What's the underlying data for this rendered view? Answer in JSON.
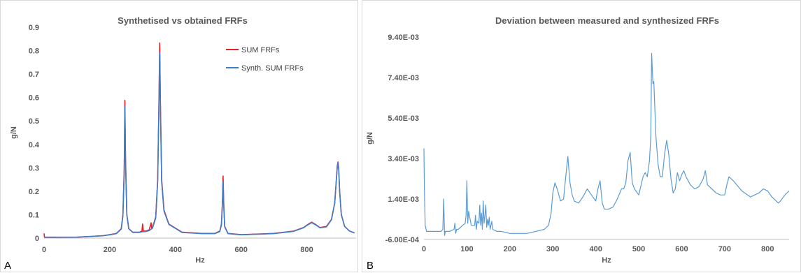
{
  "chart_data": [
    {
      "type": "line",
      "panel_label": "A",
      "title": "Synthetised vs obtained FRFs",
      "xlabel": "Hz",
      "ylabel": "g/N",
      "xlim": [
        0,
        950
      ],
      "ylim": [
        0,
        0.9
      ],
      "xticks": [
        0,
        200,
        400,
        600,
        800
      ],
      "xtick_labels": [
        "0",
        "200",
        "400",
        "600",
        "800"
      ],
      "yticks": [
        0,
        0.1,
        0.2,
        0.3,
        0.4,
        0.5,
        0.6,
        0.7,
        0.8,
        0.9
      ],
      "ytick_labels": [
        "0",
        "0.1",
        "0.2",
        "0.3",
        "0.4",
        "0.5",
        "0.6",
        "0.7",
        "0.8",
        "0.9"
      ],
      "grid": false,
      "legend": "top-right",
      "series": [
        {
          "name": "SUM FRFs",
          "color": "#e8202a",
          "x": [
            0,
            1,
            2,
            5,
            100,
            180,
            200,
            220,
            235,
            240,
            244,
            246,
            248,
            252,
            258,
            270,
            290,
            298,
            300,
            302,
            310,
            320,
            326,
            328,
            330,
            340,
            346,
            350,
            352,
            354,
            358,
            365,
            380,
            420,
            480,
            520,
            535,
            540,
            543,
            545,
            547,
            550,
            560,
            600,
            700,
            760,
            790,
            805,
            815,
            825,
            840,
            860,
            875,
            885,
            890,
            893,
            895,
            897,
            900,
            905,
            915,
            930,
            945
          ],
          "y": [
            0.02,
            0.005,
            0.003,
            0.003,
            0.004,
            0.01,
            0.015,
            0.02,
            0.04,
            0.1,
            0.3,
            0.588,
            0.35,
            0.1,
            0.04,
            0.025,
            0.025,
            0.03,
            0.06,
            0.03,
            0.03,
            0.035,
            0.065,
            0.04,
            0.045,
            0.09,
            0.25,
            0.6,
            0.833,
            0.6,
            0.25,
            0.12,
            0.06,
            0.025,
            0.02,
            0.02,
            0.03,
            0.06,
            0.15,
            0.265,
            0.15,
            0.05,
            0.02,
            0.015,
            0.02,
            0.03,
            0.045,
            0.06,
            0.068,
            0.06,
            0.045,
            0.05,
            0.08,
            0.15,
            0.25,
            0.31,
            0.325,
            0.3,
            0.2,
            0.1,
            0.05,
            0.03,
            0.022
          ]
        },
        {
          "name": "Synth. SUM FRFs",
          "color": "#3d7cc9",
          "x": [
            0,
            100,
            180,
            200,
            220,
            235,
            240,
            244,
            246,
            248,
            252,
            258,
            270,
            290,
            300,
            310,
            320,
            330,
            340,
            346,
            350,
            352,
            354,
            358,
            365,
            380,
            420,
            480,
            520,
            535,
            540,
            543,
            545,
            547,
            550,
            560,
            600,
            700,
            760,
            790,
            805,
            815,
            825,
            840,
            860,
            875,
            885,
            890,
            893,
            895,
            897,
            900,
            905,
            915,
            930,
            945
          ],
          "y": [
            0.004,
            0.004,
            0.01,
            0.014,
            0.019,
            0.038,
            0.095,
            0.28,
            0.56,
            0.33,
            0.1,
            0.04,
            0.024,
            0.024,
            0.027,
            0.028,
            0.032,
            0.042,
            0.085,
            0.24,
            0.58,
            0.79,
            0.58,
            0.24,
            0.115,
            0.058,
            0.024,
            0.019,
            0.019,
            0.028,
            0.055,
            0.14,
            0.24,
            0.14,
            0.048,
            0.019,
            0.014,
            0.019,
            0.029,
            0.044,
            0.058,
            0.066,
            0.058,
            0.044,
            0.048,
            0.078,
            0.15,
            0.25,
            0.305,
            0.322,
            0.298,
            0.2,
            0.1,
            0.05,
            0.03,
            0.022
          ]
        }
      ]
    },
    {
      "type": "line",
      "panel_label": "B",
      "title": "Deviation between measured and synthesized FRFs",
      "xlabel": "Hz",
      "ylabel": "g/N",
      "xlim": [
        0,
        850
      ],
      "ylim": [
        -0.0006,
        0.0094
      ],
      "xticks": [
        0,
        100,
        200,
        300,
        400,
        500,
        600,
        700,
        800
      ],
      "xtick_labels": [
        "0",
        "100",
        "200",
        "300",
        "400",
        "500",
        "600",
        "700",
        "800"
      ],
      "yticks": [
        -0.0006,
        0.0014,
        0.0034,
        0.0054,
        0.0074,
        0.0094
      ],
      "ytick_labels": [
        "-6.00E-04",
        "1.40E-03",
        "3.40E-03",
        "5.40E-03",
        "7.40E-03",
        "9.40E-03"
      ],
      "grid": false,
      "series": [
        {
          "color": "#5b9bd5",
          "x": [
            0,
            1,
            3,
            6,
            10,
            20,
            30,
            40,
            44,
            46,
            48,
            50,
            60,
            70,
            72,
            74,
            76,
            80,
            90,
            96,
            98,
            100,
            102,
            104,
            110,
            118,
            120,
            122,
            124,
            128,
            130,
            132,
            134,
            136,
            138,
            140,
            142,
            144,
            146,
            148,
            150,
            152,
            154,
            158,
            160,
            170,
            180,
            200,
            220,
            240,
            260,
            280,
            290,
            296,
            300,
            305,
            310,
            318,
            325,
            330,
            335,
            340,
            345,
            350,
            360,
            370,
            380,
            390,
            400,
            405,
            410,
            415,
            420,
            430,
            440,
            450,
            460,
            465,
            470,
            475,
            480,
            485,
            490,
            500,
            510,
            515,
            520,
            525,
            528,
            530,
            533,
            535,
            540,
            545,
            550,
            555,
            560,
            565,
            570,
            575,
            580,
            585,
            590,
            595,
            600,
            605,
            610,
            620,
            630,
            640,
            645,
            650,
            655,
            660,
            670,
            680,
            690,
            700,
            705,
            710,
            720,
            740,
            760,
            780,
            790,
            800,
            810,
            820,
            825,
            830,
            840,
            850
          ],
          "y": [
            0.0039,
            0.002,
            0.0001,
            -0.0002,
            -0.0002,
            -0.0002,
            -0.0002,
            -0.0002,
            -0.0001,
            0.0014,
            -0.0004,
            -0.0002,
            -0.0002,
            -0.0001,
            0.0002,
            -0.0003,
            -0.0001,
            -0.0001,
            0.0001,
            0.0002,
            0.0006,
            0.0023,
            0.0002,
            0.0008,
            0.0001,
            0.0001,
            0.0006,
            -0.0001,
            0.0003,
            0.0002,
            0.0011,
            0.0001,
            0.0007,
            -0.0001,
            0.0013,
            0.0002,
            0.0006,
            0.0011,
            0.0,
            0.0004,
            0.0001,
            0.0005,
            -0.0001,
            0.0003,
            -0.0001,
            -0.0002,
            -0.0002,
            -0.0003,
            -0.0003,
            -0.0003,
            -0.0002,
            -0.0001,
            0.0001,
            0.0007,
            0.0017,
            0.0022,
            0.0019,
            0.0013,
            0.0014,
            0.0025,
            0.0035,
            0.0022,
            0.0016,
            0.0013,
            0.0012,
            0.0015,
            0.0019,
            0.0016,
            0.0013,
            0.0019,
            0.0023,
            0.0012,
            0.0009,
            0.0009,
            0.001,
            0.0014,
            0.0019,
            0.0019,
            0.0022,
            0.0033,
            0.0037,
            0.0022,
            0.0019,
            0.0016,
            0.0025,
            0.0027,
            0.0025,
            0.0033,
            0.0045,
            0.0086,
            0.0071,
            0.0072,
            0.0045,
            0.0031,
            0.0025,
            0.0025,
            0.0036,
            0.0043,
            0.0036,
            0.0024,
            0.0017,
            0.0019,
            0.0027,
            0.0023,
            0.0026,
            0.0028,
            0.0025,
            0.0021,
            0.0019,
            0.002,
            0.0022,
            0.0024,
            0.0028,
            0.0021,
            0.0019,
            0.0017,
            0.0016,
            0.0016,
            0.0021,
            0.0025,
            0.0023,
            0.0018,
            0.0015,
            0.0017,
            0.0019,
            0.0018,
            0.0015,
            0.0013,
            0.0012,
            0.0013,
            0.0016,
            0.0018
          ]
        }
      ]
    }
  ]
}
